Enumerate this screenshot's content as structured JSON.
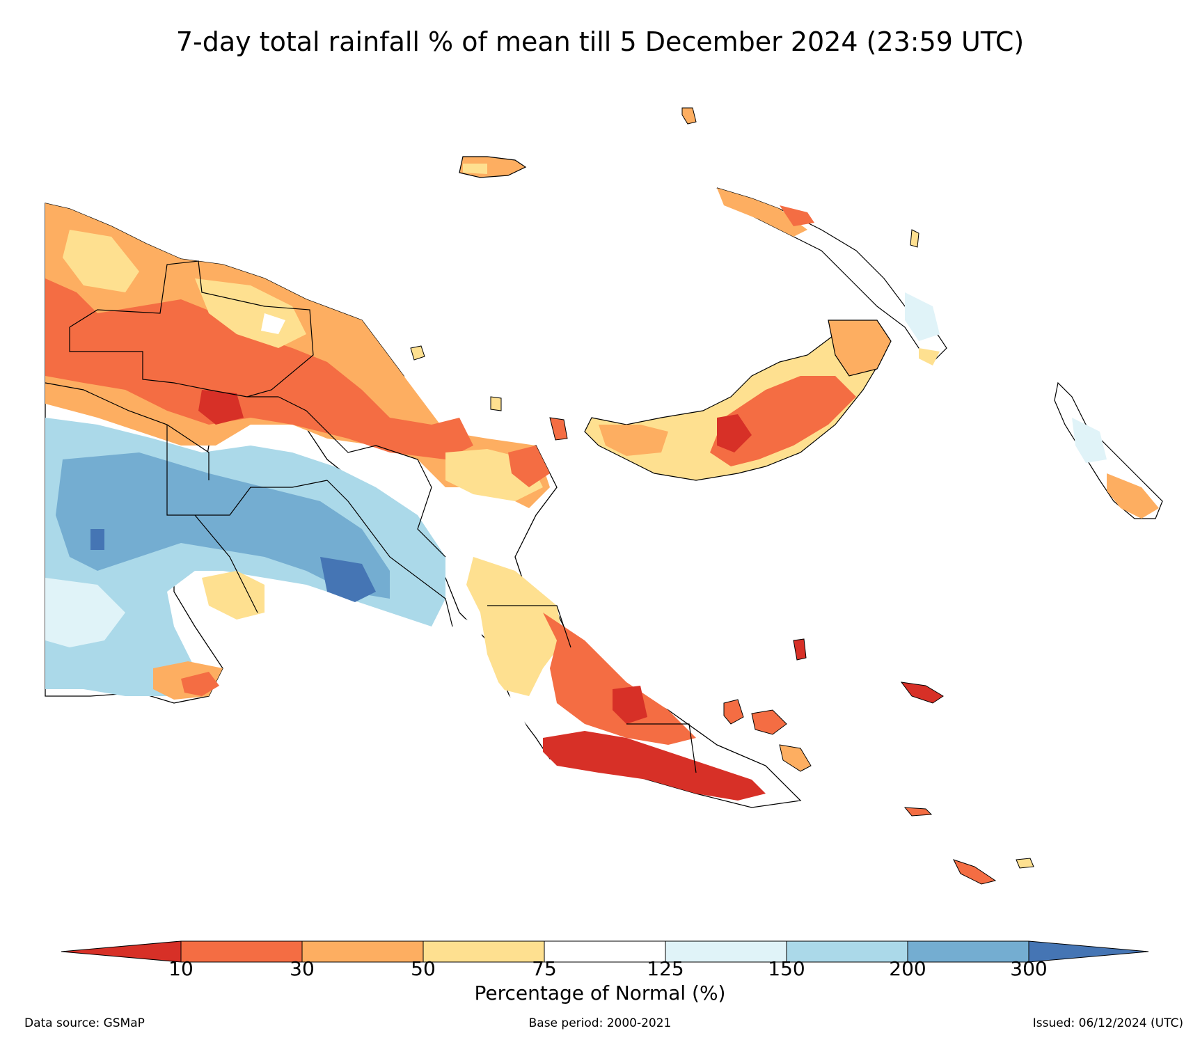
{
  "title": "7-day total rainfall % of mean till 5 December 2024 (23:59 UTC)",
  "colorbar": {
    "label": "Percentage of Normal (%)",
    "ticks": [
      "10",
      "30",
      "50",
      "75",
      "125",
      "150",
      "200",
      "300"
    ],
    "under_color": "#d73027",
    "over_color": "#4575b4",
    "bins": [
      {
        "from": 10,
        "to": 30,
        "color": "#f46d43"
      },
      {
        "from": 30,
        "to": 50,
        "color": "#fdae61"
      },
      {
        "from": 50,
        "to": 75,
        "color": "#fee090"
      },
      {
        "from": 75,
        "to": 125,
        "color": "#ffffff"
      },
      {
        "from": 125,
        "to": 150,
        "color": "#e0f3f8"
      },
      {
        "from": 150,
        "to": 200,
        "color": "#abd9e9"
      },
      {
        "from": 200,
        "to": 300,
        "color": "#74add1"
      }
    ]
  },
  "footer": {
    "source": "Data source: GSMaP",
    "base_period": "Base period: 2000-2021",
    "issued": "Issued: 06/12/2024 (UTC)"
  }
}
